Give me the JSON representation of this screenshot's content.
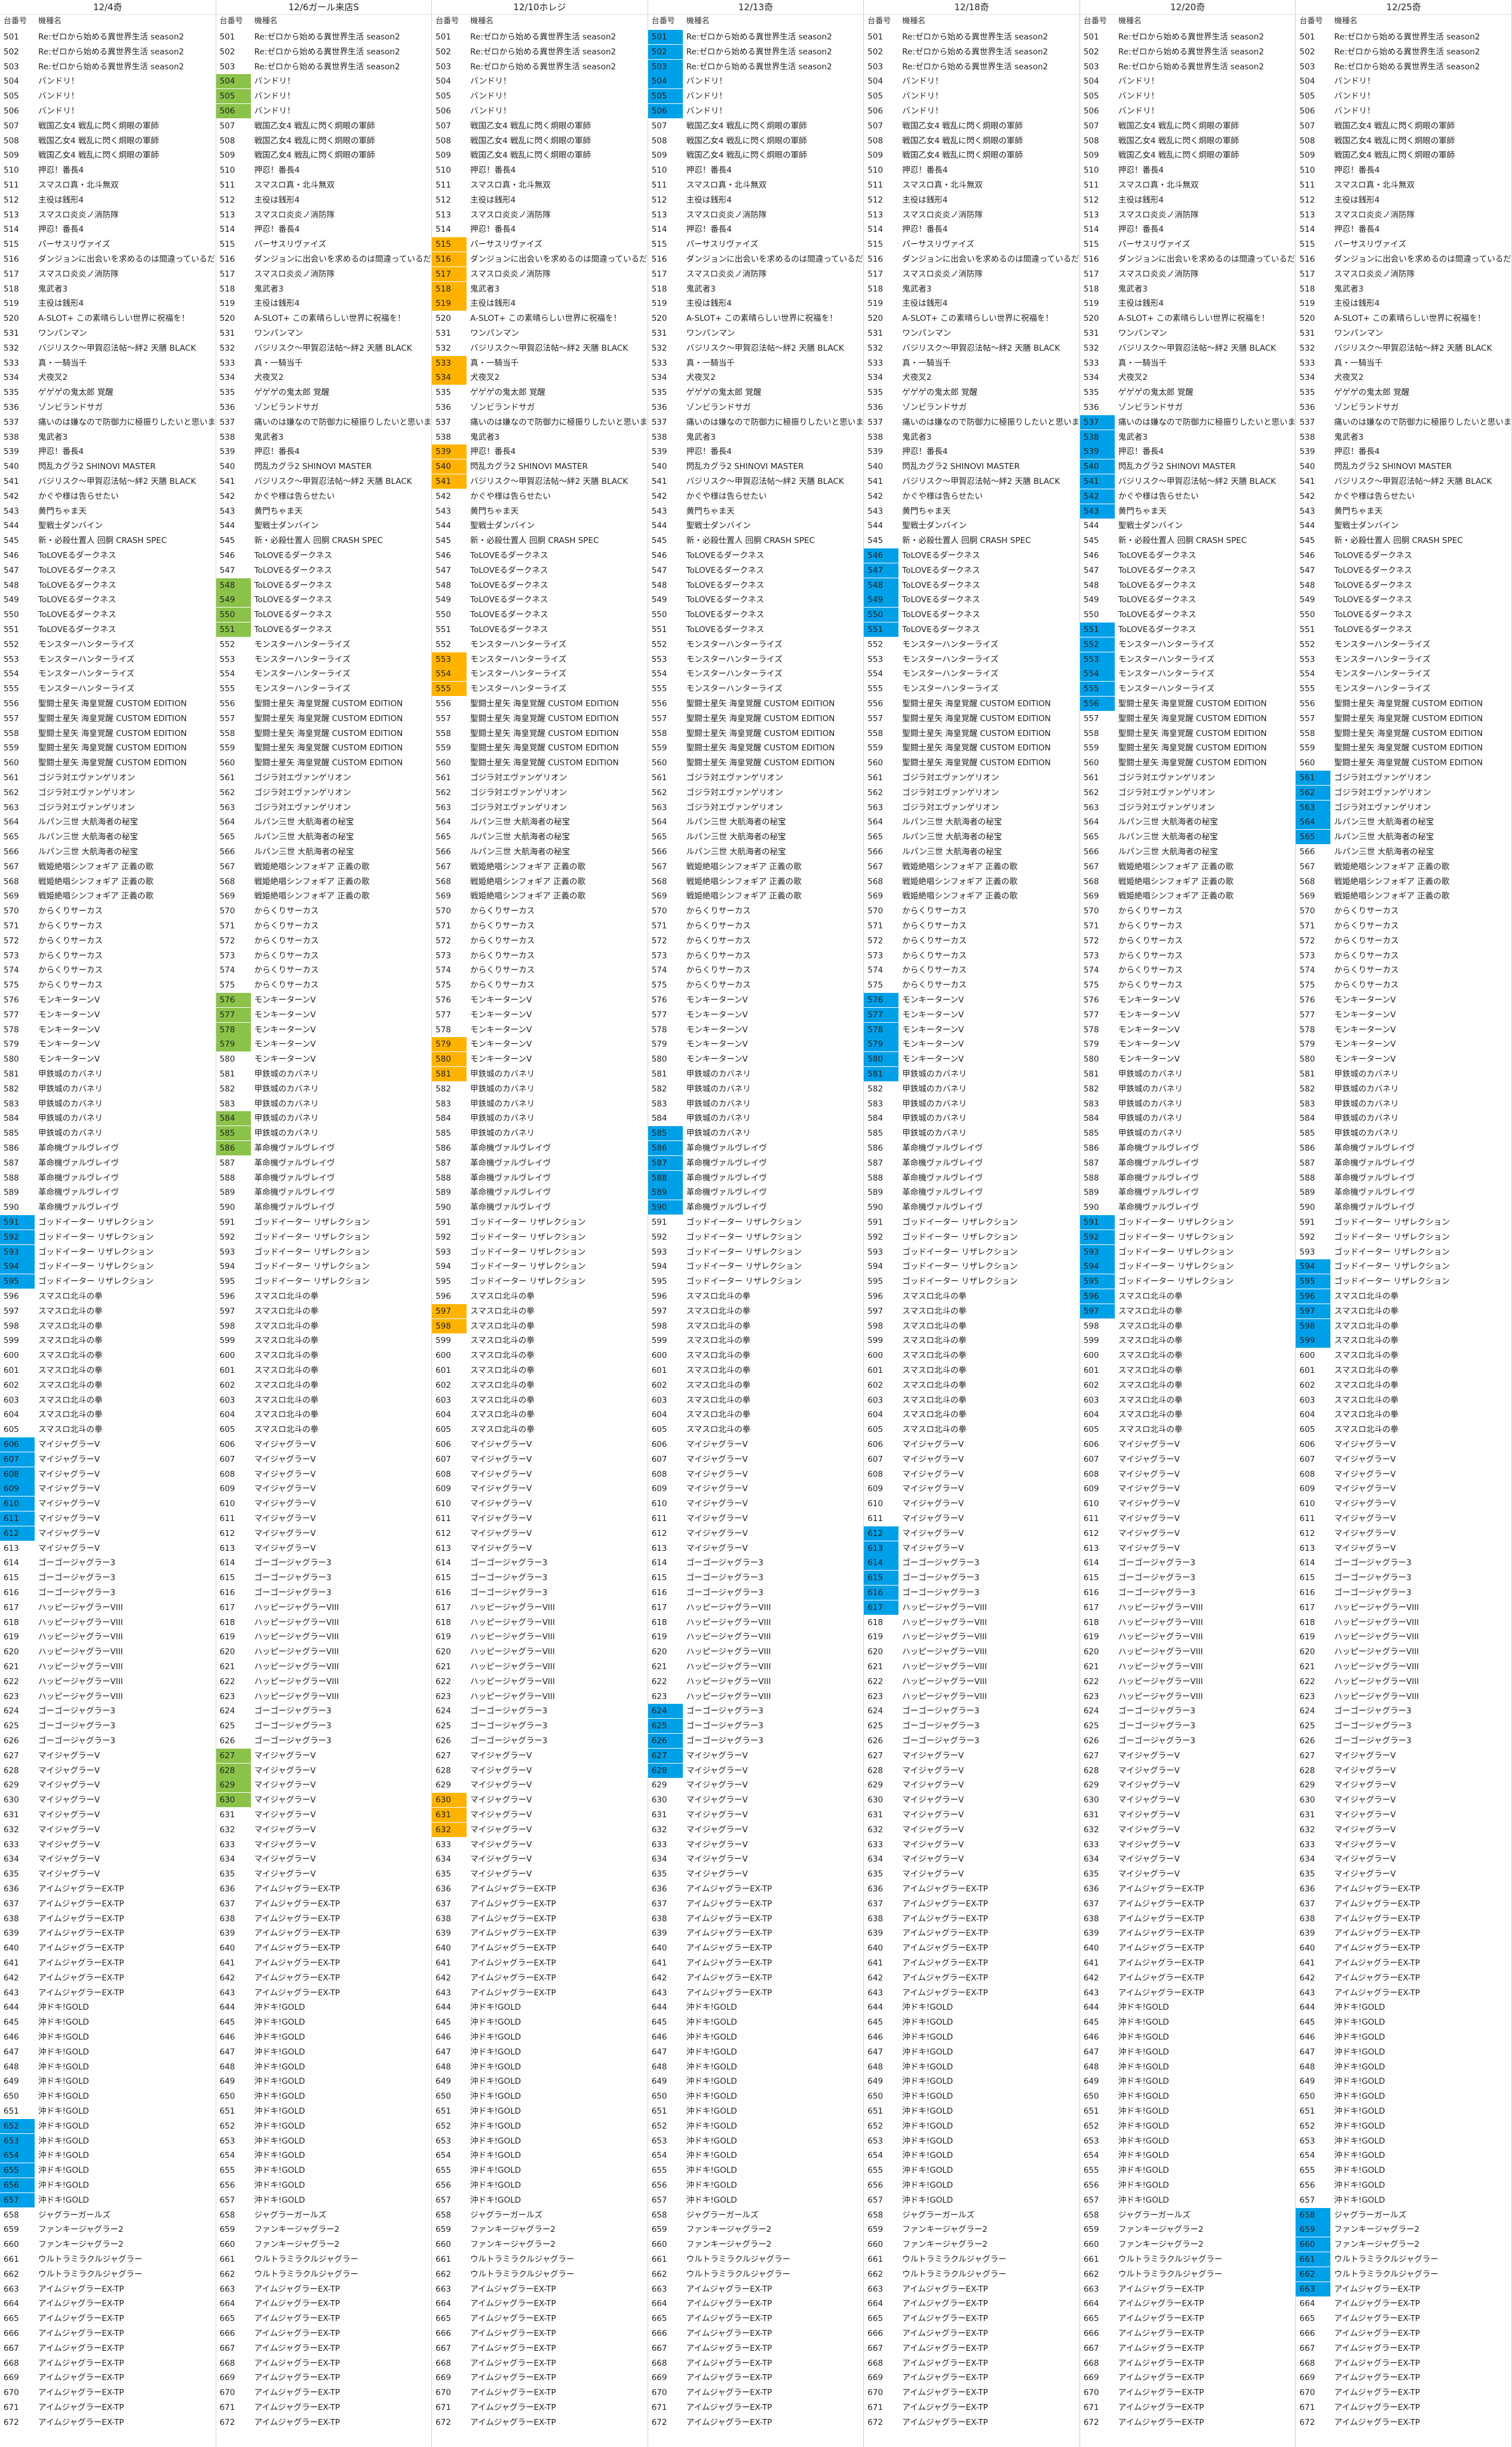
{
  "header": {
    "num_label": "台番号",
    "name_label": "機種名"
  },
  "colors": {
    "green": "#8bc34a",
    "orange": "#ffb300",
    "blue": "#00a0e9"
  },
  "columns": [
    {
      "date": "12/4奇",
      "color": "blue",
      "highlights": [
        591,
        592,
        593,
        594,
        595,
        606,
        607,
        608,
        609,
        610,
        611,
        612,
        652,
        653,
        654,
        655,
        656,
        657
      ]
    },
    {
      "date": "12/6ガール来店S",
      "color": "green",
      "highlights": [
        504,
        505,
        506,
        548,
        549,
        550,
        551,
        576,
        577,
        578,
        579,
        584,
        585,
        586,
        627,
        628,
        629,
        630
      ]
    },
    {
      "date": "12/10ホレジ",
      "color": "orange",
      "highlights": [
        515,
        516,
        517,
        518,
        519,
        533,
        534,
        539,
        540,
        541,
        553,
        554,
        555,
        579,
        580,
        581,
        597,
        598,
        630,
        631,
        632
      ]
    },
    {
      "date": "12/13奇",
      "color": "blue",
      "highlights": [
        501,
        502,
        503,
        504,
        505,
        506,
        585,
        586,
        587,
        588,
        589,
        590,
        624,
        625,
        626,
        627,
        628
      ]
    },
    {
      "date": "12/18奇",
      "color": "blue",
      "highlights": [
        546,
        547,
        548,
        549,
        550,
        551,
        576,
        577,
        578,
        579,
        580,
        581,
        612,
        613,
        614,
        615,
        616,
        617
      ]
    },
    {
      "date": "12/20奇",
      "color": "blue",
      "highlights": [
        537,
        538,
        539,
        540,
        541,
        542,
        543,
        551,
        552,
        553,
        554,
        555,
        556,
        591,
        592,
        593,
        594,
        595,
        596,
        597
      ]
    },
    {
      "date": "12/25奇",
      "color": "blue",
      "highlights": [
        561,
        562,
        563,
        564,
        565,
        594,
        595,
        596,
        597,
        598,
        599,
        658,
        659,
        660,
        661,
        662,
        663
      ]
    }
  ],
  "rows": [
    [
      "501",
      "Re:ゼロから始める異世界生活 season2"
    ],
    [
      "502",
      "Re:ゼロから始める異世界生活 season2"
    ],
    [
      "503",
      "Re:ゼロから始める異世界生活 season2"
    ],
    [
      "504",
      "バンドリ！"
    ],
    [
      "505",
      "バンドリ！"
    ],
    [
      "506",
      "バンドリ！"
    ],
    [
      "507",
      "戦国乙女4 戦乱に閃く炯眼の軍師"
    ],
    [
      "508",
      "戦国乙女4 戦乱に閃く炯眼の軍師"
    ],
    [
      "509",
      "戦国乙女4 戦乱に閃く炯眼の軍師"
    ],
    [
      "510",
      "押忍！番長4"
    ],
    [
      "511",
      "スマスロ真・北斗無双"
    ],
    [
      "512",
      "主役は銭形4"
    ],
    [
      "513",
      "スマスロ炎炎ノ消防隊"
    ],
    [
      "514",
      "押忍！番長4"
    ],
    [
      "515",
      "パーサスリヴァイズ"
    ],
    [
      "516",
      "ダンジョンに出会いを求めるのは間違っているだろうか"
    ],
    [
      "517",
      "スマスロ炎炎ノ消防隊"
    ],
    [
      "518",
      "鬼武者3"
    ],
    [
      "519",
      "主役は銭形4"
    ],
    [
      "520",
      "A-SLOT+ この素晴らしい世界に祝福を！"
    ],
    [
      "531",
      "ワンパンマン"
    ],
    [
      "532",
      "バジリスク～甲賀忍法帖～絆2 天膳 BLACK"
    ],
    [
      "533",
      "真・一騎当千"
    ],
    [
      "534",
      "犬夜叉2"
    ],
    [
      "535",
      "ゲゲゲの鬼太郎 覚醒"
    ],
    [
      "536",
      "ゾンビランドサガ"
    ],
    [
      "537",
      "痛いのは嫌なので防御力に極振りしたいと思います。"
    ],
    [
      "538",
      "鬼武者3"
    ],
    [
      "539",
      "押忍！番長4"
    ],
    [
      "540",
      "閃乱カグラ2 SHINOVI MASTER"
    ],
    [
      "541",
      "バジリスク～甲賀忍法帖～絆2 天膳 BLACK"
    ],
    [
      "542",
      "かぐや様は告らせたい"
    ],
    [
      "543",
      "黄門ちゃま天"
    ],
    [
      "544",
      "聖戦士ダンバイン"
    ],
    [
      "545",
      "新・必殺仕置人 回胴 CRASH SPEC"
    ],
    [
      "546",
      "ToLOVEるダークネス"
    ],
    [
      "547",
      "ToLOVEるダークネス"
    ],
    [
      "548",
      "ToLOVEるダークネス"
    ],
    [
      "549",
      "ToLOVEるダークネス"
    ],
    [
      "550",
      "ToLOVEるダークネス"
    ],
    [
      "551",
      "ToLOVEるダークネス"
    ],
    [
      "552",
      "モンスターハンターライズ"
    ],
    [
      "553",
      "モンスターハンターライズ"
    ],
    [
      "554",
      "モンスターハンターライズ"
    ],
    [
      "555",
      "モンスターハンターライズ"
    ],
    [
      "556",
      "聖闘士星矢 海皇覚醒 CUSTOM EDITION"
    ],
    [
      "557",
      "聖闘士星矢 海皇覚醒 CUSTOM EDITION"
    ],
    [
      "558",
      "聖闘士星矢 海皇覚醒 CUSTOM EDITION"
    ],
    [
      "559",
      "聖闘士星矢 海皇覚醒 CUSTOM EDITION"
    ],
    [
      "560",
      "聖闘士星矢 海皇覚醒 CUSTOM EDITION"
    ],
    [
      "561",
      "ゴジラ対エヴァンゲリオン"
    ],
    [
      "562",
      "ゴジラ対エヴァンゲリオン"
    ],
    [
      "563",
      "ゴジラ対エヴァンゲリオン"
    ],
    [
      "564",
      "ルパン三世 大航海者の秘宝"
    ],
    [
      "565",
      "ルパン三世 大航海者の秘宝"
    ],
    [
      "566",
      "ルパン三世 大航海者の秘宝"
    ],
    [
      "567",
      "戦姫絶唱シンフォギア 正義の歌"
    ],
    [
      "568",
      "戦姫絶唱シンフォギア 正義の歌"
    ],
    [
      "569",
      "戦姫絶唱シンフォギア 正義の歌"
    ],
    [
      "570",
      "からくりサーカス"
    ],
    [
      "571",
      "からくりサーカス"
    ],
    [
      "572",
      "からくりサーカス"
    ],
    [
      "573",
      "からくりサーカス"
    ],
    [
      "574",
      "からくりサーカス"
    ],
    [
      "575",
      "からくりサーカス"
    ],
    [
      "576",
      "モンキーターンV"
    ],
    [
      "577",
      "モンキーターンV"
    ],
    [
      "578",
      "モンキーターンV"
    ],
    [
      "579",
      "モンキーターンV"
    ],
    [
      "580",
      "モンキーターンV"
    ],
    [
      "581",
      "甲鉄城のカバネリ"
    ],
    [
      "582",
      "甲鉄城のカバネリ"
    ],
    [
      "583",
      "甲鉄城のカバネリ"
    ],
    [
      "584",
      "甲鉄城のカバネリ"
    ],
    [
      "585",
      "甲鉄城のカバネリ"
    ],
    [
      "586",
      "革命機ヴァルヴレイヴ"
    ],
    [
      "587",
      "革命機ヴァルヴレイヴ"
    ],
    [
      "588",
      "革命機ヴァルヴレイヴ"
    ],
    [
      "589",
      "革命機ヴァルヴレイヴ"
    ],
    [
      "590",
      "革命機ヴァルヴレイヴ"
    ],
    [
      "591",
      "ゴッドイーター リザレクション"
    ],
    [
      "592",
      "ゴッドイーター リザレクション"
    ],
    [
      "593",
      "ゴッドイーター リザレクション"
    ],
    [
      "594",
      "ゴッドイーター リザレクション"
    ],
    [
      "595",
      "ゴッドイーター リザレクション"
    ],
    [
      "596",
      "スマスロ北斗の拳"
    ],
    [
      "597",
      "スマスロ北斗の拳"
    ],
    [
      "598",
      "スマスロ北斗の拳"
    ],
    [
      "599",
      "スマスロ北斗の拳"
    ],
    [
      "600",
      "スマスロ北斗の拳"
    ],
    [
      "601",
      "スマスロ北斗の拳"
    ],
    [
      "602",
      "スマスロ北斗の拳"
    ],
    [
      "603",
      "スマスロ北斗の拳"
    ],
    [
      "604",
      "スマスロ北斗の拳"
    ],
    [
      "605",
      "スマスロ北斗の拳"
    ],
    [
      "606",
      "マイジャグラーV"
    ],
    [
      "607",
      "マイジャグラーV"
    ],
    [
      "608",
      "マイジャグラーV"
    ],
    [
      "609",
      "マイジャグラーV"
    ],
    [
      "610",
      "マイジャグラーV"
    ],
    [
      "611",
      "マイジャグラーV"
    ],
    [
      "612",
      "マイジャグラーV"
    ],
    [
      "613",
      "マイジャグラーV"
    ],
    [
      "614",
      "ゴーゴージャグラー3"
    ],
    [
      "615",
      "ゴーゴージャグラー3"
    ],
    [
      "616",
      "ゴーゴージャグラー3"
    ],
    [
      "617",
      "ハッピージャグラーVIII"
    ],
    [
      "618",
      "ハッピージャグラーVIII"
    ],
    [
      "619",
      "ハッピージャグラーVIII"
    ],
    [
      "620",
      "ハッピージャグラーVIII"
    ],
    [
      "621",
      "ハッピージャグラーVIII"
    ],
    [
      "622",
      "ハッピージャグラーVIII"
    ],
    [
      "623",
      "ハッピージャグラーVIII"
    ],
    [
      "624",
      "ゴーゴージャグラー3"
    ],
    [
      "625",
      "ゴーゴージャグラー3"
    ],
    [
      "626",
      "ゴーゴージャグラー3"
    ],
    [
      "627",
      "マイジャグラーV"
    ],
    [
      "628",
      "マイジャグラーV"
    ],
    [
      "629",
      "マイジャグラーV"
    ],
    [
      "630",
      "マイジャグラーV"
    ],
    [
      "631",
      "マイジャグラーV"
    ],
    [
      "632",
      "マイジャグラーV"
    ],
    [
      "633",
      "マイジャグラーV"
    ],
    [
      "634",
      "マイジャグラーV"
    ],
    [
      "635",
      "マイジャグラーV"
    ],
    [
      "636",
      "アイムジャグラーEX-TP"
    ],
    [
      "637",
      "アイムジャグラーEX-TP"
    ],
    [
      "638",
      "アイムジャグラーEX-TP"
    ],
    [
      "639",
      "アイムジャグラーEX-TP"
    ],
    [
      "640",
      "アイムジャグラーEX-TP"
    ],
    [
      "641",
      "アイムジャグラーEX-TP"
    ],
    [
      "642",
      "アイムジャグラーEX-TP"
    ],
    [
      "643",
      "アイムジャグラーEX-TP"
    ],
    [
      "644",
      "沖ドキ!GOLD"
    ],
    [
      "645",
      "沖ドキ!GOLD"
    ],
    [
      "646",
      "沖ドキ!GOLD"
    ],
    [
      "647",
      "沖ドキ!GOLD"
    ],
    [
      "648",
      "沖ドキ!GOLD"
    ],
    [
      "649",
      "沖ドキ!GOLD"
    ],
    [
      "650",
      "沖ドキ!GOLD"
    ],
    [
      "651",
      "沖ドキ!GOLD"
    ],
    [
      "652",
      "沖ドキ!GOLD"
    ],
    [
      "653",
      "沖ドキ!GOLD"
    ],
    [
      "654",
      "沖ドキ!GOLD"
    ],
    [
      "655",
      "沖ドキ!GOLD"
    ],
    [
      "656",
      "沖ドキ!GOLD"
    ],
    [
      "657",
      "沖ドキ!GOLD"
    ],
    [
      "658",
      "ジャグラーガールズ"
    ],
    [
      "659",
      "ファンキージャグラー2"
    ],
    [
      "660",
      "ファンキージャグラー2"
    ],
    [
      "661",
      "ウルトラミラクルジャグラー"
    ],
    [
      "662",
      "ウルトラミラクルジャグラー"
    ],
    [
      "663",
      "アイムジャグラーEX-TP"
    ],
    [
      "664",
      "アイムジャグラーEX-TP"
    ],
    [
      "665",
      "アイムジャグラーEX-TP"
    ],
    [
      "666",
      "アイムジャグラーEX-TP"
    ],
    [
      "667",
      "アイムジャグラーEX-TP"
    ],
    [
      "668",
      "アイムジャグラーEX-TP"
    ],
    [
      "669",
      "アイムジャグラーEX-TP"
    ],
    [
      "670",
      "アイムジャグラーEX-TP"
    ],
    [
      "671",
      "アイムジャグラーEX-TP"
    ],
    [
      "672",
      "アイムジャグラーEX-TP"
    ]
  ]
}
